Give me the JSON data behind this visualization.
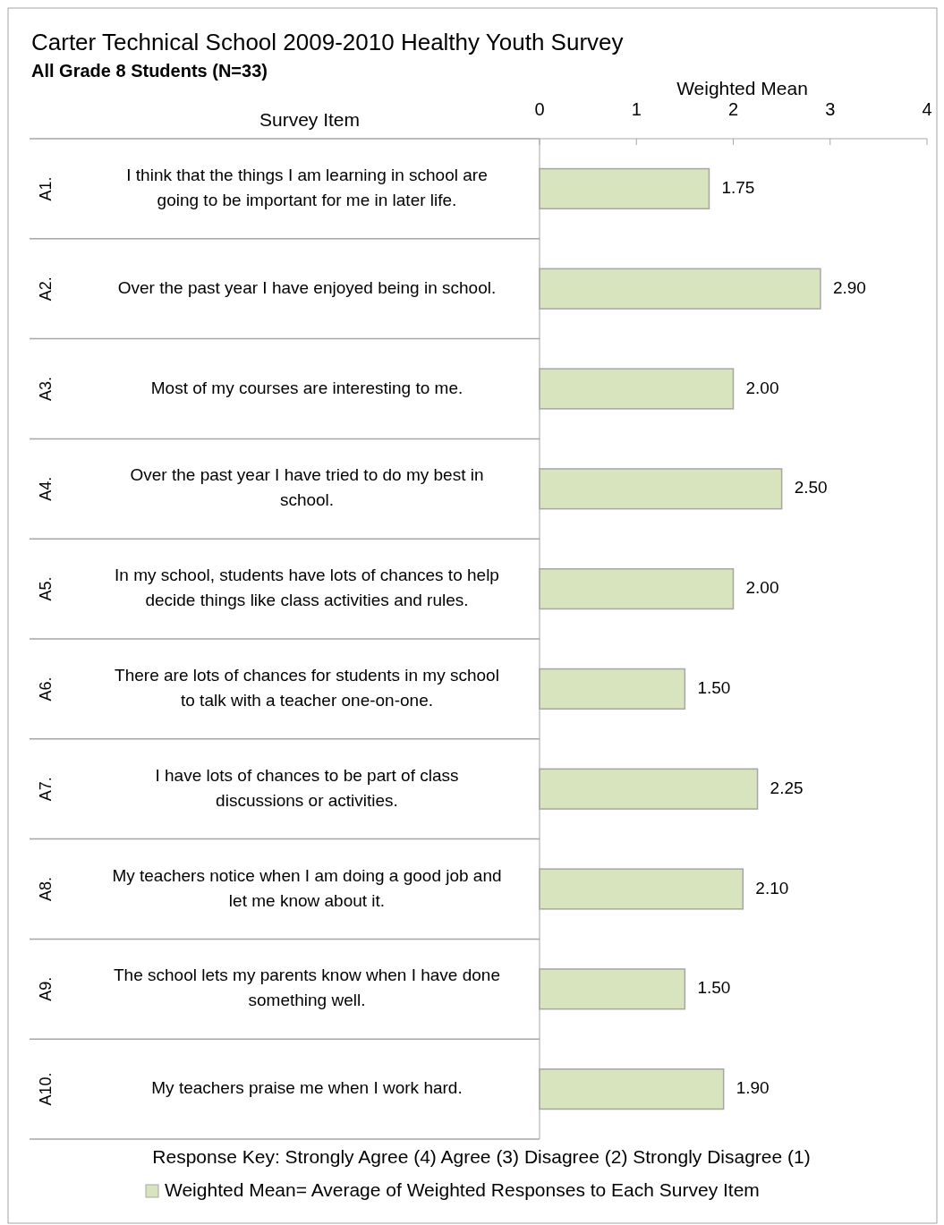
{
  "chart_data": {
    "type": "bar",
    "orientation": "horizontal",
    "title": "Carter Technical School 2009-2010 Healthy Youth Survey",
    "subtitle": "All Grade 8 Students (N=33)",
    "xlabel": "Weighted Mean",
    "ylabel": "Survey Item",
    "categories": [
      "I think that the things I am learning in school are going to be important for me in later life.",
      "Over the past year I have enjoyed being in school.",
      "Most of my courses are interesting to me.",
      "Over the past year I have tried to do my best in school.",
      "In my school, students have lots of chances to help decide things like class activities and rules.",
      "There are lots of chances for students in my school to talk with a teacher one-on-one.",
      "I have lots of chances to be part of class discussions or activities.",
      "My teachers notice when I am doing a good job and let me know about it.",
      "The school lets my parents know when I have done something well.",
      "My teachers praise me when I work hard."
    ],
    "series": [
      {
        "name": "Weighted Mean= Average of Weighted Responses to Each Survey Item",
        "color": "#d7e4bd",
        "values": [
          1.75,
          2.9,
          2.0,
          2.5,
          2.0,
          1.5,
          2.25,
          2.1,
          1.5,
          1.9
        ],
        "value_labels": [
          "1.75",
          "2.90",
          "2.00",
          "2.50",
          "2.00",
          "1.50",
          "2.25",
          "2.10",
          "1.50",
          "1.90"
        ]
      }
    ],
    "xlim": [
      0,
      4
    ],
    "xticks": [
      0,
      1,
      2,
      3,
      4
    ],
    "grid": false,
    "legend": "bottom",
    "annotations": [
      "A1.",
      "A2.",
      "A3.",
      "A4.",
      "A5.",
      "A6.",
      "A7.",
      "A8.",
      "A9.",
      "A10.",
      "Response Key: Strongly Agree (4) Agree (3) Disagree (2) Strongly Disagree (1)"
    ]
  }
}
